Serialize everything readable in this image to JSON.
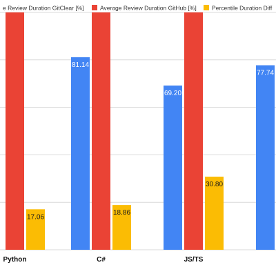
{
  "chart_data": {
    "type": "bar",
    "categories": [
      "Python",
      "C#",
      "JS/TS",
      ""
    ],
    "series": [
      {
        "name": "Average Review Duration GitClear [%]",
        "color": "#4285F4",
        "values": [
          null,
          81.14,
          69.2,
          77.74
        ],
        "labels": [
          "",
          "81.14",
          "69.20",
          "77.74"
        ]
      },
      {
        "name": "Average Review Duration GitHub [%]",
        "color": "#EA4335",
        "values": [
          100,
          100,
          100,
          100
        ],
        "labels": [
          "",
          "",
          "",
          ""
        ]
      },
      {
        "name": "Percentile Duration Diff",
        "color": "#FBBC04",
        "values": [
          17.06,
          18.86,
          30.8,
          null
        ],
        "labels": [
          "17.06",
          "18.86",
          "30.80",
          ""
        ]
      }
    ],
    "legend": {
      "placement": "top",
      "items": [
        "e Review Duration GitClear [%]",
        "Average Review Duration GitHub [%]",
        "Percentile Duration Diff"
      ]
    },
    "ylim": [
      0,
      100
    ],
    "grid": true,
    "title": "",
    "xlabel": "",
    "ylabel": ""
  }
}
